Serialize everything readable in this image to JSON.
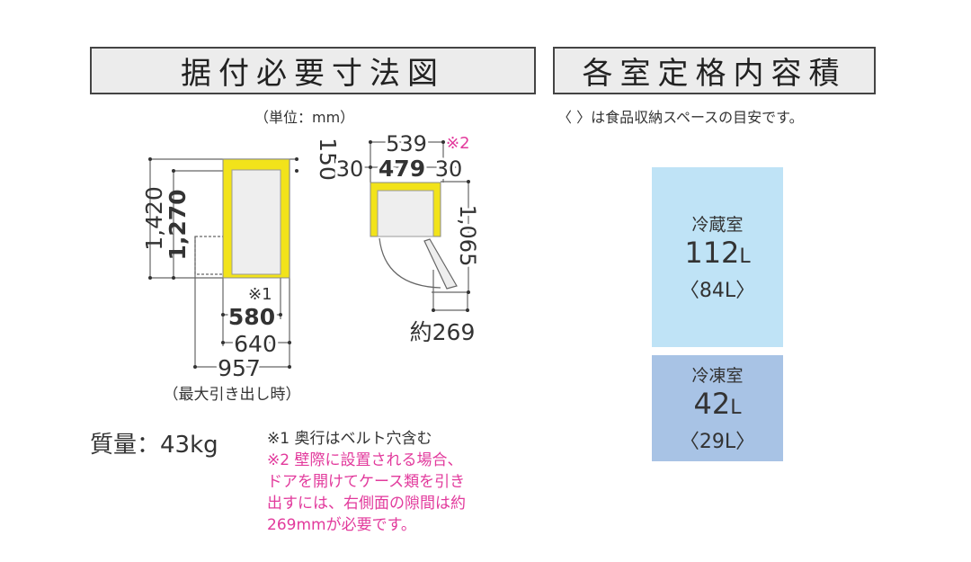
{
  "headers": {
    "installation": "据付必要寸法図",
    "capacity": "各室定格内容積"
  },
  "unit_note": "（単位：mm）",
  "capacity_note": "〈 〉は食品収納スペースの目安です。",
  "dimensions": {
    "total_height": "1,420",
    "body_height": "1,270",
    "top_clearance": "150",
    "depth_note_mark": "※1",
    "depth_body": "580",
    "depth_total": "640",
    "depth_max": "957",
    "depth_max_note": "（最大引き出し時）",
    "width_total": "539",
    "width_mark": "※2",
    "side_gap_left": "30",
    "width_body": "479",
    "side_gap_right": "30",
    "door_swing": "1,065",
    "door_gap": "約269"
  },
  "compartments": [
    {
      "name": "冷蔵室",
      "volume": "112",
      "unit": "L",
      "storage": "〈84L〉",
      "color": "#bfe3f6"
    },
    {
      "name": "冷凍室",
      "volume": "42",
      "unit": "L",
      "storage": "〈29L〉",
      "color": "#a8c3e5"
    }
  ],
  "weight": "質量：43kg",
  "footnotes": {
    "note1": "※1 奥行はベルト穴含む",
    "note2_lines": [
      "※2 壁際に設置される場合、",
      "ドアを開けてケース類を引き",
      "出すには、右側面の隙間は約",
      "269mmが必要です。"
    ]
  },
  "colors": {
    "cabinet": "#f2e31a",
    "note2": "#e23a9c"
  }
}
